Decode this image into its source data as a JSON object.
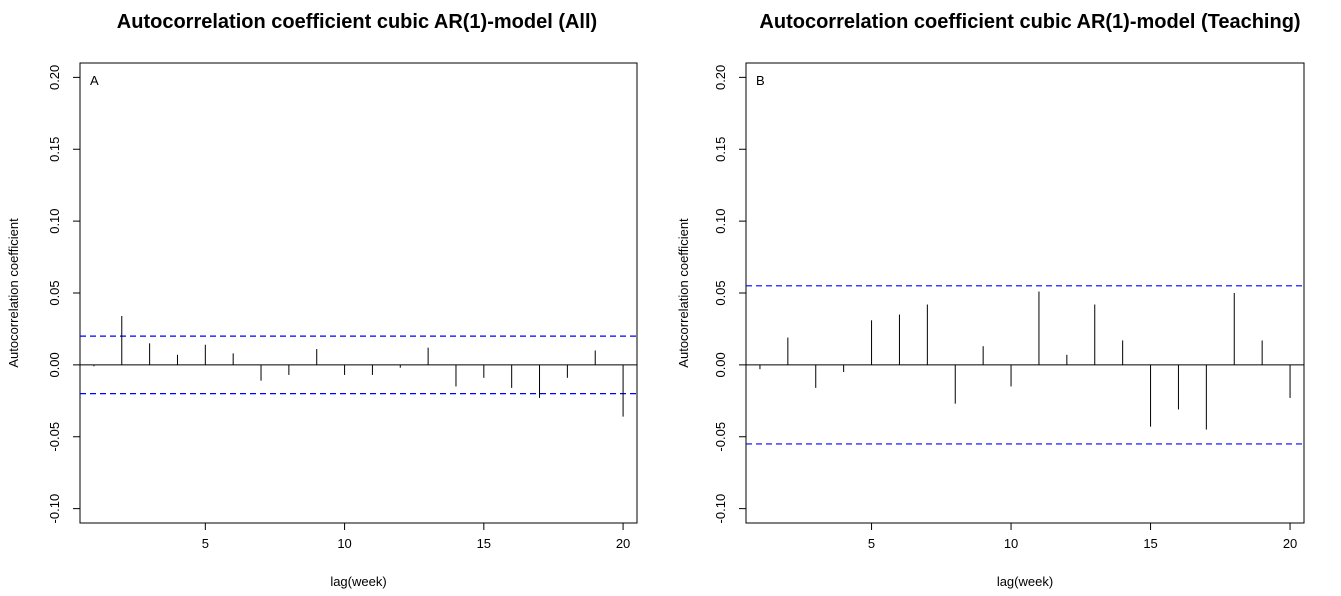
{
  "chart_data": [
    {
      "type": "bar",
      "panel_label": "A",
      "title": "Autocorrelation coefficient cubic AR(1)-model (All)",
      "xlabel": "lag(week)",
      "ylabel": "Autocorrelation coefficient",
      "xlim": [
        0.5,
        20.5
      ],
      "ylim": [
        -0.11,
        0.21
      ],
      "xticks": [
        "5",
        "10",
        "15",
        "20"
      ],
      "yticks": [
        "-0.10",
        "-0.05",
        "0.00",
        "0.05",
        "0.10",
        "0.15",
        "0.20"
      ],
      "x": [
        1,
        2,
        3,
        4,
        5,
        6,
        7,
        8,
        9,
        10,
        11,
        12,
        13,
        14,
        15,
        16,
        17,
        18,
        19,
        20
      ],
      "values": [
        -0.001,
        0.034,
        0.015,
        0.007,
        0.014,
        0.008,
        -0.011,
        -0.007,
        0.011,
        -0.007,
        -0.007,
        -0.002,
        0.012,
        -0.015,
        -0.009,
        -0.016,
        -0.023,
        -0.009,
        0.01,
        -0.036
      ],
      "confidence_band": 0.02,
      "colors": {
        "bars": "#000000",
        "band": "#0000ff",
        "zero_line": "#000000"
      },
      "grid": false
    },
    {
      "type": "bar",
      "panel_label": "B",
      "title": "Autocorrelation coefficient cubic AR(1)-model (Teaching)",
      "xlabel": "lag(week)",
      "ylabel": "Autocorrelation coefficient",
      "xlim": [
        0.5,
        20.5
      ],
      "ylim": [
        -0.11,
        0.21
      ],
      "xticks": [
        "5",
        "10",
        "15",
        "20"
      ],
      "yticks": [
        "-0.10",
        "-0.05",
        "0.00",
        "0.05",
        "0.10",
        "0.15",
        "0.20"
      ],
      "x": [
        1,
        2,
        3,
        4,
        5,
        6,
        7,
        8,
        9,
        10,
        11,
        12,
        13,
        14,
        15,
        16,
        17,
        18,
        19,
        20
      ],
      "values": [
        -0.003,
        0.019,
        -0.016,
        -0.005,
        0.031,
        0.035,
        0.042,
        -0.027,
        0.013,
        -0.015,
        0.051,
        0.007,
        0.042,
        0.017,
        -0.043,
        -0.031,
        -0.045,
        0.05,
        0.017,
        -0.023
      ],
      "confidence_band": 0.055,
      "colors": {
        "bars": "#000000",
        "band": "#0000ff",
        "zero_line": "#000000"
      },
      "grid": false
    }
  ]
}
